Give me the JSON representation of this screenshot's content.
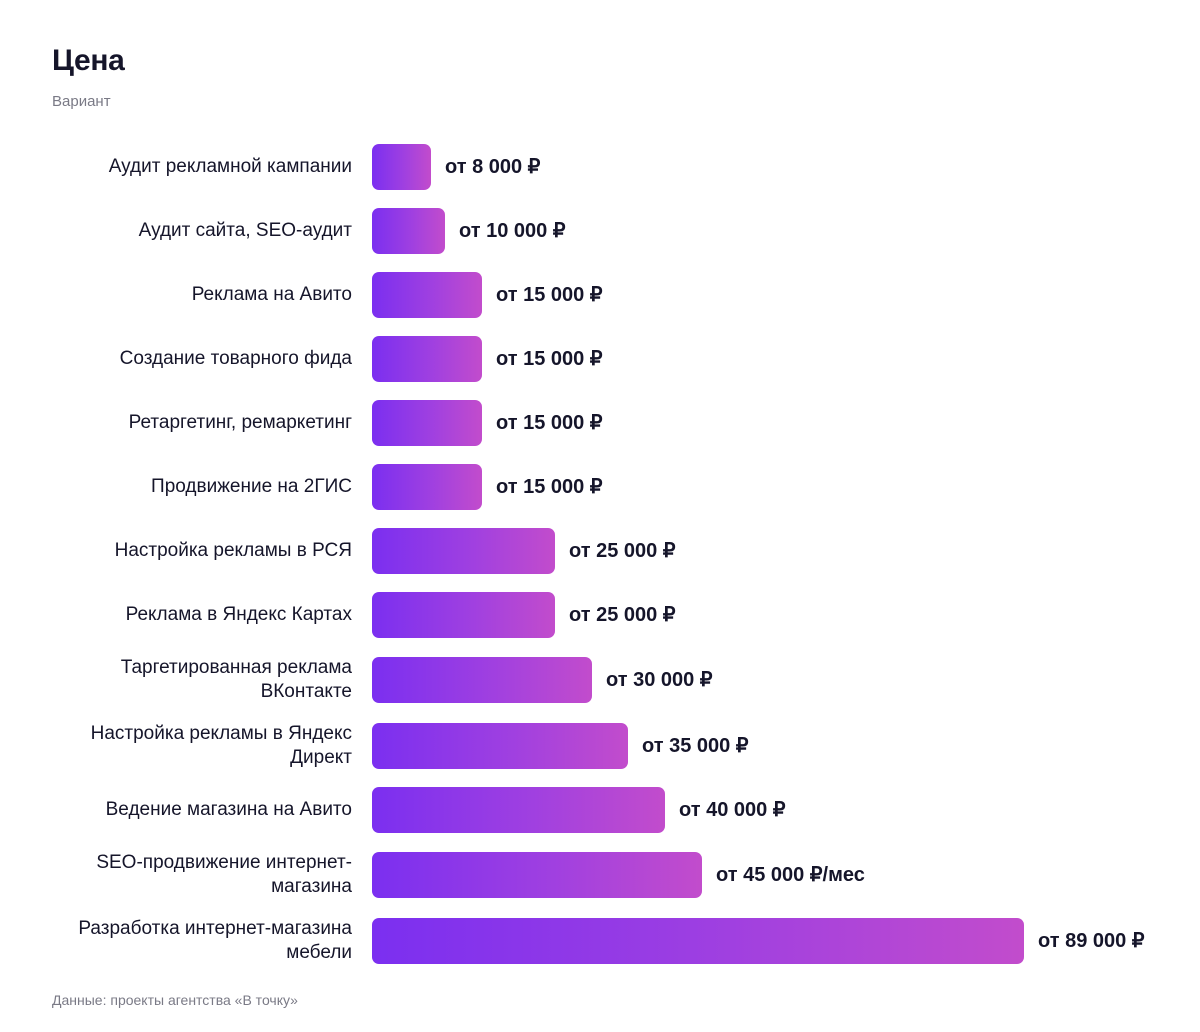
{
  "header": {
    "title": "Цена",
    "subtitle": "Вариант"
  },
  "footer": {
    "source": "Данные: проекты агентства «В точку»"
  },
  "chart_data": {
    "type": "bar",
    "orientation": "horizontal",
    "title": "Цена",
    "subtitle": "Вариант",
    "bar_color": {
      "from": "#7b2ff0",
      "to": "#c24ccc"
    },
    "categories": [
      "Аудит рекламной кампании",
      "Аудит сайта, SEO-аудит",
      "Реклама на Авито",
      "Создание товарного фида",
      "Ретаргетинг, ремаркетинг",
      "Продвижение на 2ГИС",
      "Настройка рекламы в РСЯ",
      "Реклама в Яндекс Картах",
      "Таргетированная реклама ВКонтакте",
      "Настройка рекламы в Яндекс Директ",
      "Ведение магазина на Авито",
      "SEO-продвижение интернет-магазина",
      "Разработка интернет-магазина мебели"
    ],
    "values": [
      8000,
      10000,
      15000,
      15000,
      15000,
      15000,
      25000,
      25000,
      30000,
      35000,
      40000,
      45000,
      89000
    ],
    "value_labels": [
      "от 8 000 ₽",
      "от 10 000 ₽",
      "от 15 000 ₽",
      "от 15 000 ₽",
      "от 15 000 ₽",
      "от 15 000 ₽",
      "от 25 000 ₽",
      "от 25 000 ₽",
      "от 30 000 ₽",
      "от 35 000 ₽",
      "от 40 000 ₽",
      "от 45 000 ₽/мес",
      "от 89 000 ₽"
    ],
    "xlim": [
      0,
      89000
    ],
    "grid": false,
    "legend": "none"
  }
}
